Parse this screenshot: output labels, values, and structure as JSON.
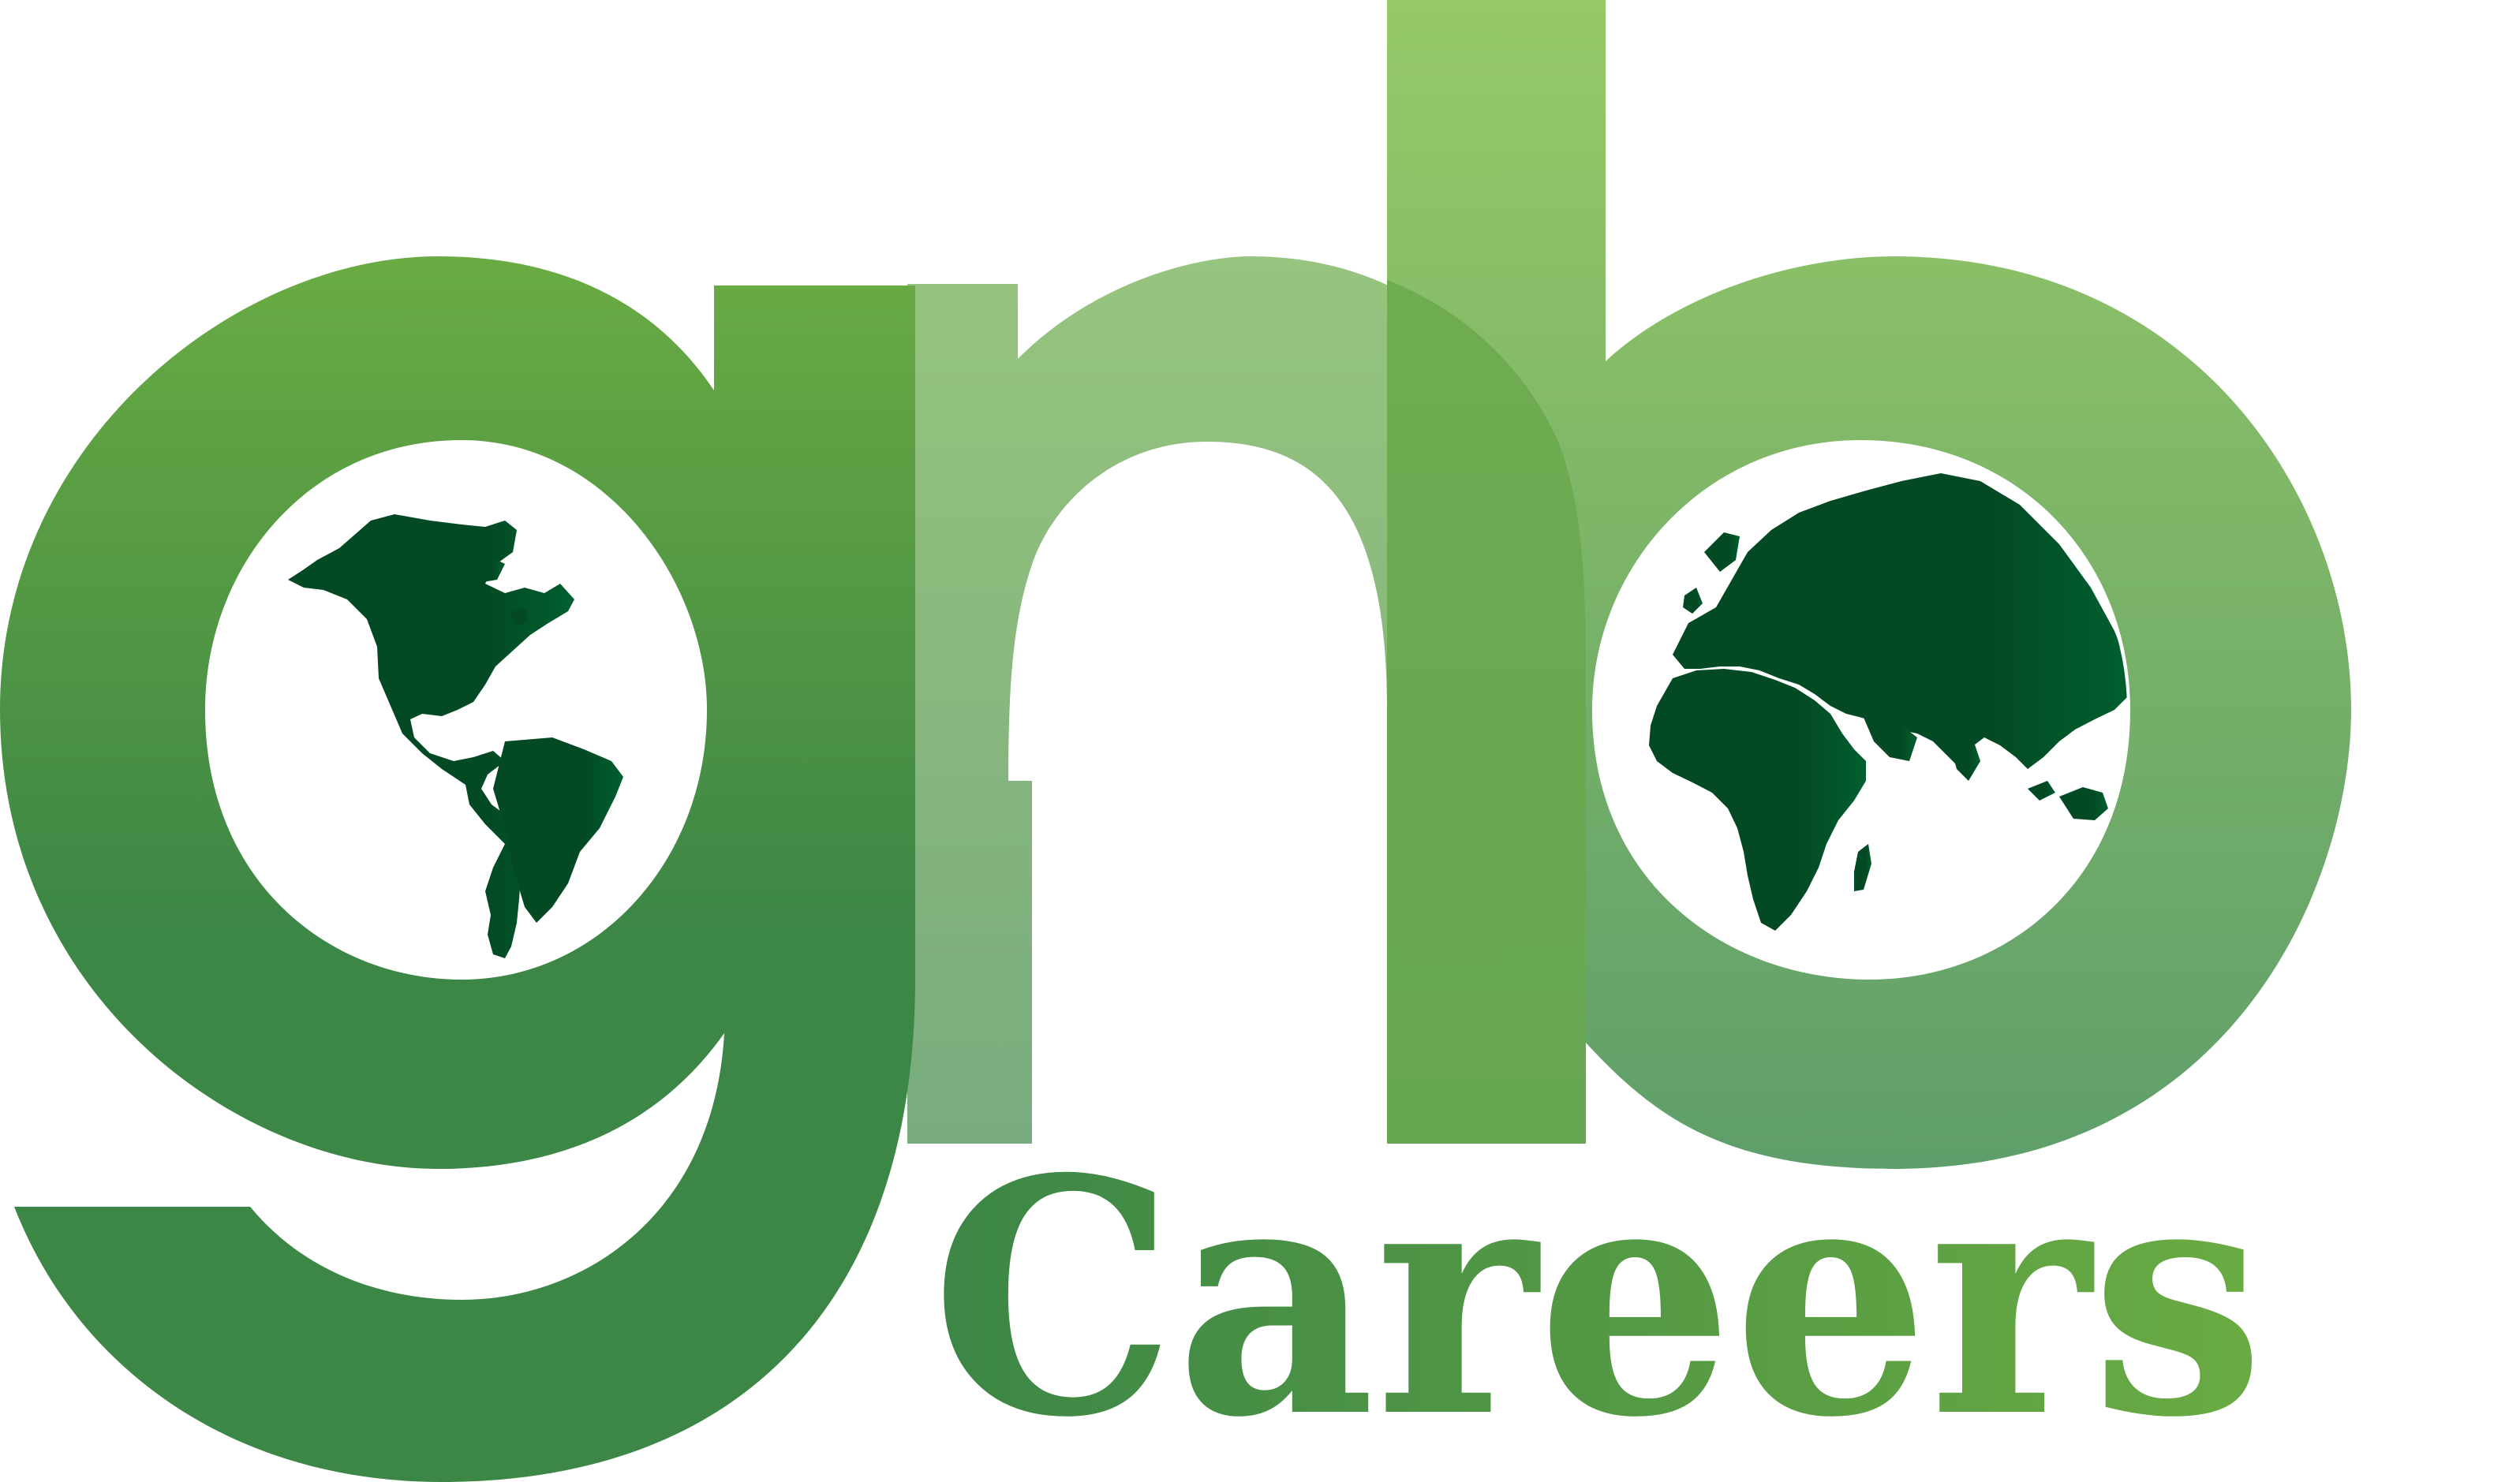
{
  "logo": {
    "name": "gnb",
    "tagline": "Careers",
    "colors": {
      "g_top": "#6aab43",
      "g_bottom": "#3c8646",
      "n_light": "#97c47e",
      "n_light_bottom": "#78ab7e",
      "b_top": "#97c967",
      "b_bottom": "#5e9e6a",
      "globe": "#034a24",
      "globe_highlight": "#005f2e",
      "careers_left": "#3c8646",
      "careers_right": "#6aab43"
    },
    "icons": [
      "americas-globe-icon",
      "eurasia-africa-globe-icon"
    ]
  }
}
